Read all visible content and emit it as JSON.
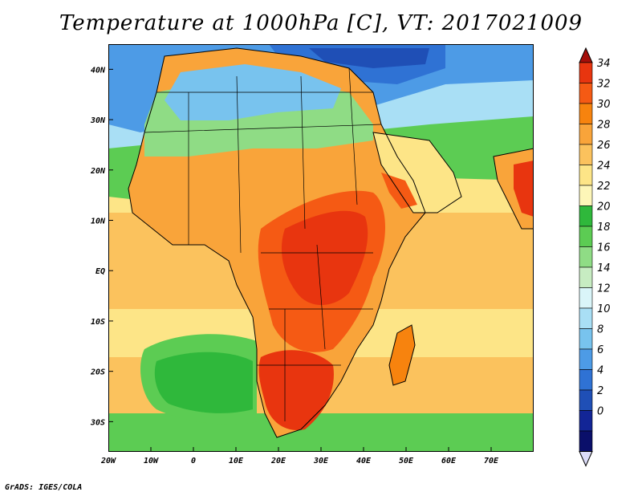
{
  "title": "Temperature at 1000hPa [C], VT: 2017021009",
  "credit": "GrADS: IGES/COLA",
  "map": {
    "type": "filled contour",
    "region": "Africa",
    "variable": "Temperature at 1000hPa",
    "units": "C",
    "lon_range": [
      -20,
      80
    ],
    "lat_range": [
      -36,
      45
    ],
    "lon_ticks": [
      {
        "value": -20,
        "label": "20W"
      },
      {
        "value": -10,
        "label": "10W"
      },
      {
        "value": 0,
        "label": "0"
      },
      {
        "value": 10,
        "label": "10E"
      },
      {
        "value": 20,
        "label": "20E"
      },
      {
        "value": 30,
        "label": "30E"
      },
      {
        "value": 40,
        "label": "40E"
      },
      {
        "value": 50,
        "label": "50E"
      },
      {
        "value": 60,
        "label": "60E"
      },
      {
        "value": 70,
        "label": "70E"
      }
    ],
    "lat_ticks": [
      {
        "value": 40,
        "label": "40N"
      },
      {
        "value": 30,
        "label": "30N"
      },
      {
        "value": 20,
        "label": "20N"
      },
      {
        "value": 10,
        "label": "10N"
      },
      {
        "value": 0,
        "label": "EQ"
      },
      {
        "value": -10,
        "label": "10S"
      },
      {
        "value": -20,
        "label": "20S"
      },
      {
        "value": -30,
        "label": "30S"
      }
    ]
  },
  "colorbar": {
    "levels": [
      "34",
      "32",
      "30",
      "28",
      "26",
      "24",
      "22",
      "20",
      "18",
      "16",
      "14",
      "12",
      "10",
      "8",
      "6",
      "4",
      "2",
      "0"
    ],
    "colors": [
      "#a50f0a",
      "#e8350f",
      "#f55a14",
      "#f7830e",
      "#f9a43a",
      "#fbc25d",
      "#fde587",
      "#fdf6b8",
      "#2fb83b",
      "#5ccc53",
      "#8fdc85",
      "#c7ecc2",
      "#daf5f9",
      "#a9dff5",
      "#78c3ee",
      "#4d9be6",
      "#2f72d4",
      "#1f4fb6",
      "#122596",
      "#0a0f6a"
    ],
    "over_color": "#a50f0a",
    "under_color": "#dcdcf8"
  }
}
